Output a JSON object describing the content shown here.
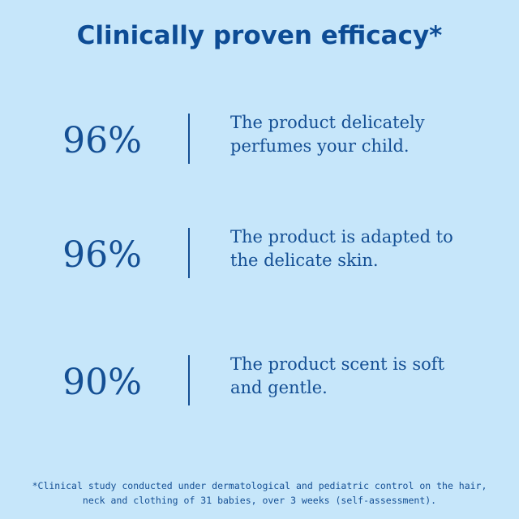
{
  "header": {
    "title": "Clinically proven efficacy*"
  },
  "stats": [
    {
      "value": "96%",
      "lines": [
        "The product delicately",
        "perfumes your child."
      ]
    },
    {
      "value": "96%",
      "lines": [
        "The product is adapted to",
        "the delicate skin."
      ]
    },
    {
      "value": "90%",
      "lines": [
        "The product scent is soft",
        "and gentle."
      ]
    }
  ],
  "footnote": {
    "lines": [
      "*Clinical study conducted under dermatological and pediatric control on the hair,",
      "neck and clothing of 31 babies, over 3 weeks (self-assessment)."
    ]
  }
}
